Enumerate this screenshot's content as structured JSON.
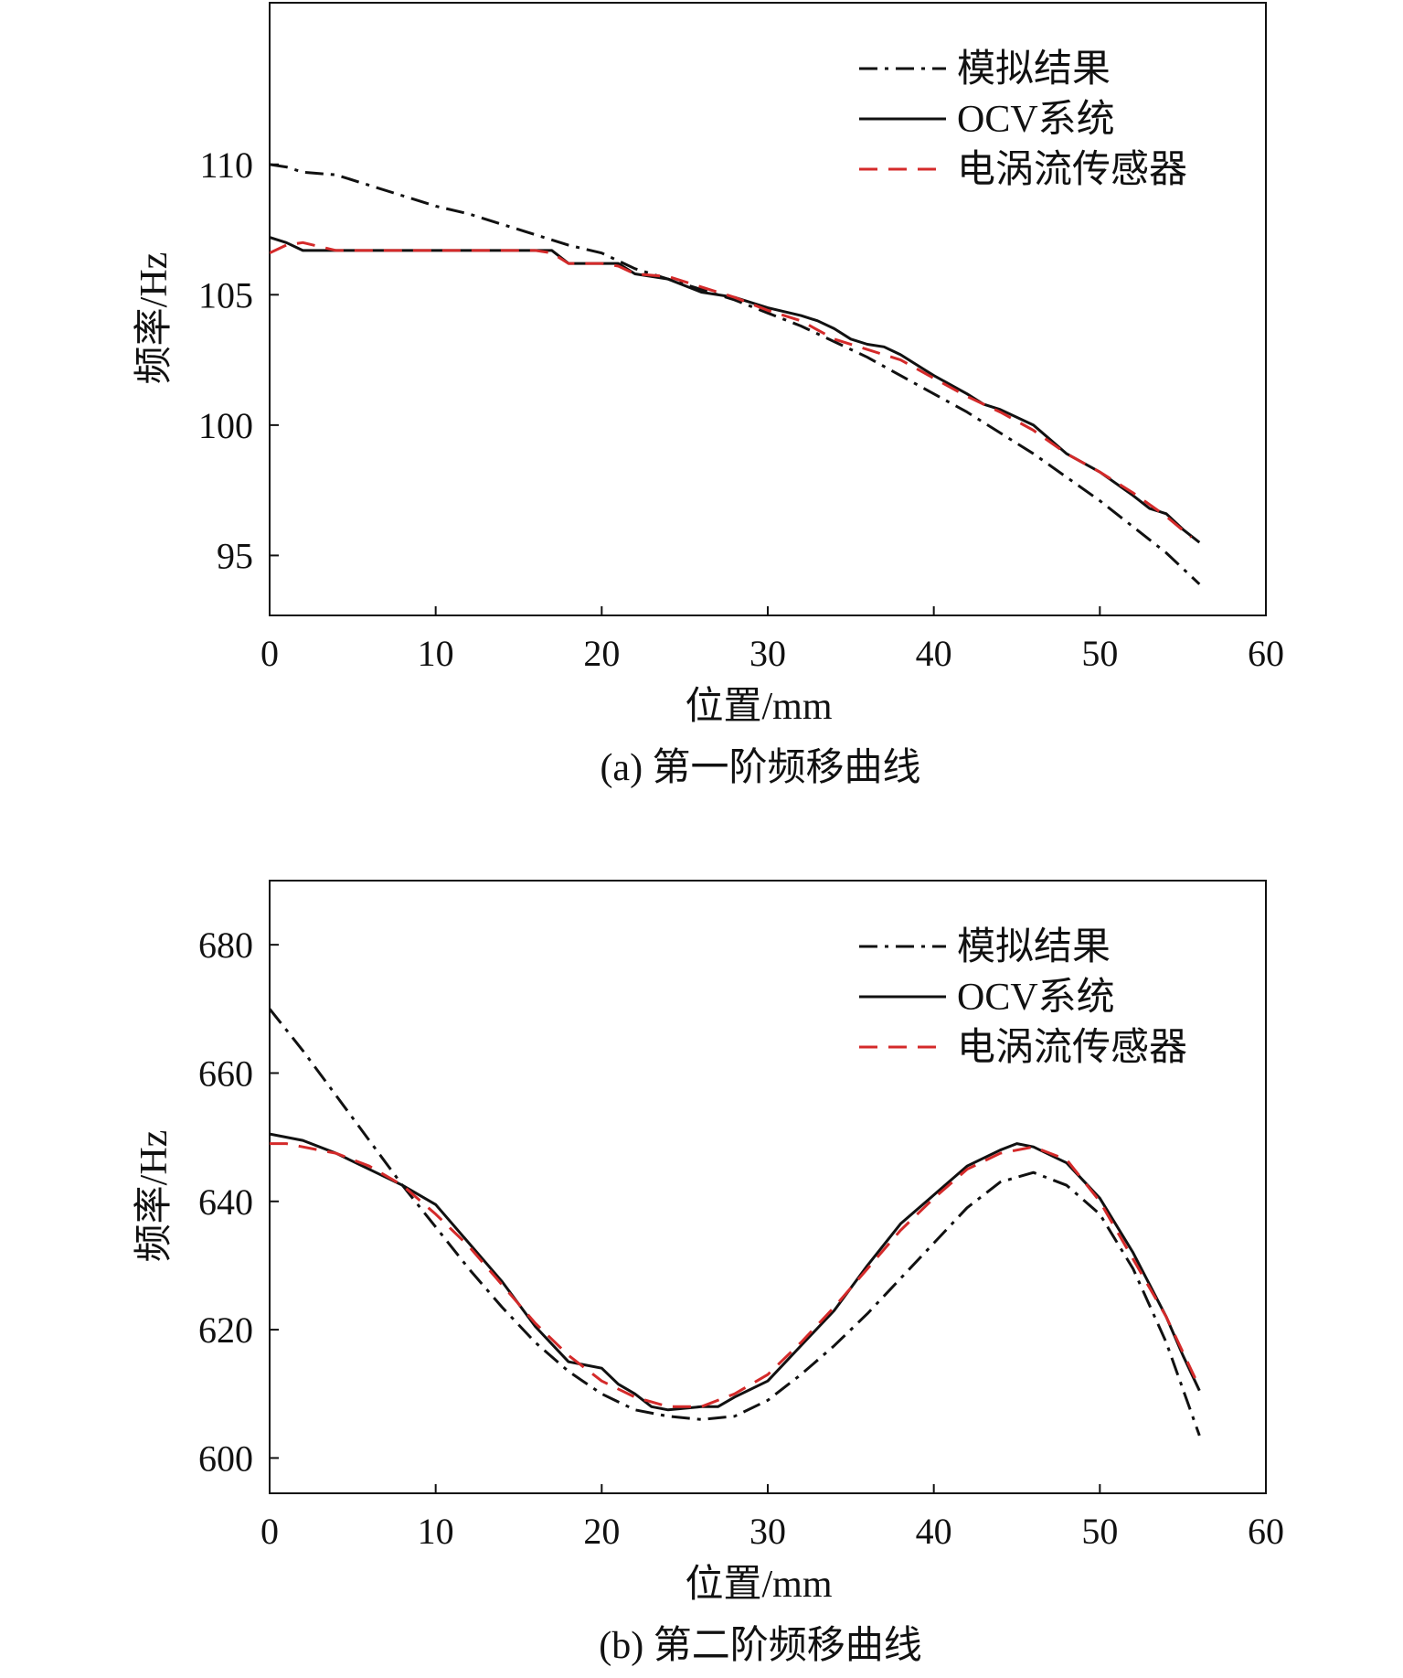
{
  "chart_data": [
    {
      "type": "line",
      "caption": "(a) 第一阶频移曲线",
      "xlabel": "位置/mm",
      "ylabel": "频率/Hz",
      "xlim": [
        0,
        60
      ],
      "ylim": [
        92.7,
        116.2
      ],
      "xticks": [
        0,
        10,
        20,
        30,
        40,
        50,
        60
      ],
      "yticks": [
        95,
        100,
        105,
        110
      ],
      "legend_position": "top-right",
      "series": [
        {
          "name": "模拟结果",
          "style": "dashdot",
          "color": "#111111",
          "x": [
            0,
            1,
            2,
            4,
            6,
            8,
            10,
            12,
            14,
            16,
            18,
            20,
            21,
            22,
            24,
            26,
            28,
            30,
            32,
            34,
            36,
            38,
            40,
            42,
            44,
            46,
            48,
            50,
            52,
            54,
            56
          ],
          "y": [
            110.0,
            109.9,
            109.7,
            109.6,
            109.2,
            108.8,
            108.4,
            108.1,
            107.7,
            107.3,
            106.9,
            106.6,
            106.3,
            106.0,
            105.6,
            105.2,
            104.8,
            104.3,
            103.8,
            103.2,
            102.6,
            101.9,
            101.2,
            100.5,
            99.7,
            98.9,
            98.0,
            97.1,
            96.1,
            95.1,
            93.9
          ]
        },
        {
          "name": "OCV系统",
          "style": "solid",
          "color": "#111111",
          "x": [
            0,
            1,
            2,
            4,
            6,
            8,
            10,
            12,
            14,
            16,
            17,
            18,
            19,
            20,
            21,
            22,
            24,
            26,
            28,
            30,
            32,
            33,
            34,
            35,
            36,
            37,
            38,
            40,
            42,
            43,
            44,
            46,
            48,
            50,
            52,
            53,
            54,
            55,
            56
          ],
          "y": [
            107.2,
            107.0,
            106.7,
            106.7,
            106.7,
            106.7,
            106.7,
            106.7,
            106.7,
            106.7,
            106.7,
            106.2,
            106.2,
            106.2,
            106.2,
            105.8,
            105.6,
            105.1,
            104.9,
            104.5,
            104.2,
            104.0,
            103.7,
            103.3,
            103.1,
            103.0,
            102.7,
            101.9,
            101.2,
            100.8,
            100.6,
            100.0,
            98.9,
            98.2,
            97.3,
            96.8,
            96.6,
            96.0,
            95.5
          ]
        },
        {
          "name": "电涡流传感器",
          "style": "dashed",
          "color": "#d42a2a",
          "x": [
            0,
            1,
            2,
            4,
            6,
            8,
            10,
            12,
            14,
            16,
            17,
            18,
            19,
            20,
            21,
            22,
            24,
            26,
            28,
            30,
            32,
            34,
            36,
            38,
            40,
            42,
            44,
            46,
            48,
            50,
            52,
            54,
            55.5
          ],
          "y": [
            106.6,
            106.9,
            107.0,
            106.7,
            106.7,
            106.7,
            106.7,
            106.7,
            106.7,
            106.7,
            106.6,
            106.2,
            106.2,
            106.2,
            106.1,
            105.8,
            105.7,
            105.3,
            104.9,
            104.4,
            104.0,
            103.3,
            102.9,
            102.5,
            101.8,
            101.1,
            100.5,
            99.8,
            98.9,
            98.2,
            97.4,
            96.5,
            95.7
          ]
        }
      ]
    },
    {
      "type": "line",
      "caption": "(b) 第二阶频移曲线",
      "xlabel": "位置/mm",
      "ylabel": "频率/Hz",
      "xlim": [
        0,
        60
      ],
      "ylim": [
        594.5,
        690
      ],
      "xticks": [
        0,
        10,
        20,
        30,
        40,
        50,
        60
      ],
      "yticks": [
        600,
        620,
        640,
        660,
        680
      ],
      "legend_position": "top-right",
      "series": [
        {
          "name": "模拟结果",
          "style": "dashdot",
          "color": "#111111",
          "x": [
            0,
            2,
            4,
            6,
            8,
            10,
            12,
            14,
            16,
            18,
            20,
            22,
            24,
            26,
            28,
            30,
            32,
            34,
            36,
            38,
            40,
            42,
            44,
            46,
            48,
            50,
            52,
            54,
            56
          ],
          "y": [
            670,
            663.5,
            656.5,
            649.5,
            642.5,
            636,
            629.5,
            623.5,
            618,
            613.5,
            610,
            607.5,
            606.5,
            606,
            606.5,
            609,
            613,
            617.5,
            622.5,
            628,
            633.5,
            639,
            643,
            644.5,
            642.5,
            638,
            629.5,
            618,
            603.5
          ]
        },
        {
          "name": "OCV系统",
          "style": "solid",
          "color": "#111111",
          "x": [
            0,
            1,
            2,
            4,
            6,
            8,
            10,
            12,
            14,
            16,
            18,
            20,
            21,
            22,
            23,
            24,
            26,
            27,
            28,
            30,
            32,
            34,
            36,
            38,
            40,
            42,
            44,
            45,
            46,
            48,
            50,
            52,
            54,
            55,
            56
          ],
          "y": [
            650.5,
            650,
            649.5,
            647.5,
            645,
            642.5,
            639.5,
            633.5,
            627.5,
            620.5,
            615,
            614,
            611.5,
            610,
            608,
            607.5,
            608,
            608,
            609.5,
            612,
            617.5,
            623,
            630,
            636.5,
            641,
            645.5,
            648,
            649,
            648.5,
            646,
            640.5,
            632,
            622,
            616,
            610.5
          ]
        },
        {
          "name": "电涡流传感器",
          "style": "dashed",
          "color": "#d42a2a",
          "x": [
            0,
            1,
            2,
            4,
            6,
            8,
            10,
            12,
            14,
            16,
            18,
            20,
            22,
            24,
            26,
            28,
            30,
            32,
            34,
            36,
            38,
            40,
            42,
            44,
            46,
            48,
            50,
            52,
            54,
            56
          ],
          "y": [
            649,
            649,
            648.5,
            647.5,
            645.5,
            642.5,
            638,
            633,
            627,
            621,
            616,
            612,
            609.5,
            608,
            608,
            610,
            613,
            618,
            623.5,
            629.5,
            635.5,
            640.5,
            645,
            647.5,
            648.5,
            646.5,
            640,
            631,
            622,
            611
          ]
        }
      ]
    }
  ]
}
